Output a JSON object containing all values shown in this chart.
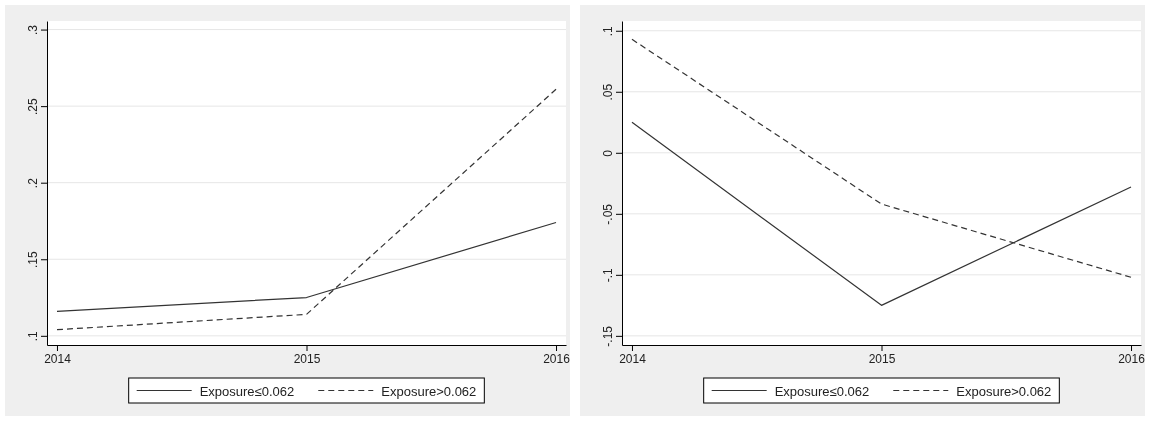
{
  "chart_data": [
    {
      "type": "line",
      "x": [
        2014,
        2015,
        2016
      ],
      "xlim": [
        2013.96,
        2016.04
      ],
      "xticks": [
        2014,
        2015,
        2016
      ],
      "ylim": [
        0.094,
        0.3056
      ],
      "yticks": [
        {
          "value": 0.1,
          "label": ".1"
        },
        {
          "value": 0.15,
          "label": ".15"
        },
        {
          "value": 0.2,
          "label": ".2"
        },
        {
          "value": 0.25,
          "label": ".25"
        },
        {
          "value": 0.3,
          "label": ".3"
        }
      ],
      "grid": "y",
      "legend": "bottom",
      "series": [
        {
          "name": "Exposure≤0.062",
          "color": "#333333",
          "line_style": "solid",
          "values": [
            0.116,
            0.125,
            0.174
          ]
        },
        {
          "name": "Exposure>0.062",
          "color": "#333333",
          "line_style": "dashed",
          "values": [
            0.104,
            0.114,
            0.261
          ]
        }
      ]
    },
    {
      "type": "line",
      "x": [
        2014,
        2015,
        2016
      ],
      "xlim": [
        2013.96,
        2016.04
      ],
      "xticks": [
        2014,
        2015,
        2016
      ],
      "ylim": [
        -0.1575,
        0.108
      ],
      "yticks": [
        {
          "value": -0.15,
          "label": "-.15"
        },
        {
          "value": -0.1,
          "label": "-.1"
        },
        {
          "value": -0.05,
          "label": "-.05"
        },
        {
          "value": 0,
          "label": "0"
        },
        {
          "value": 0.05,
          "label": ".05"
        },
        {
          "value": 0.1,
          "label": ".1"
        }
      ],
      "grid": "y",
      "legend": "bottom",
      "series": [
        {
          "name": "Exposure≤0.062",
          "color": "#333333",
          "line_style": "solid",
          "values": [
            0.025,
            -0.125,
            -0.028
          ]
        },
        {
          "name": "Exposure>0.062",
          "color": "#333333",
          "line_style": "dashed",
          "values": [
            0.093,
            -0.042,
            -0.102
          ]
        }
      ]
    }
  ]
}
